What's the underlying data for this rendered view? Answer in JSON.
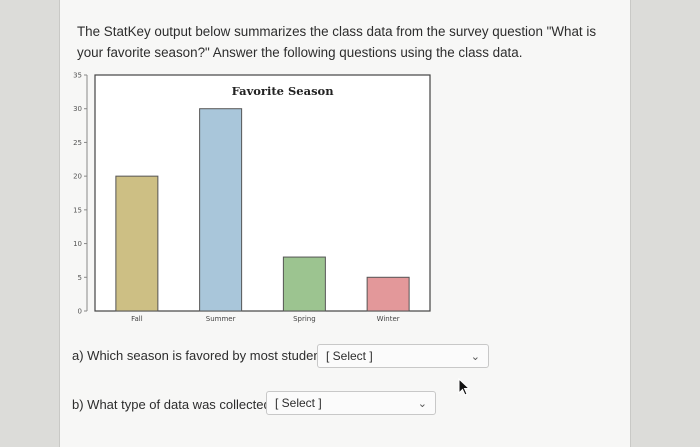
{
  "intro_text": "The StatKey output below summarizes the class data from the survey question \"What is your favorite season?\" Answer the following questions using the class data.",
  "chart_data": {
    "type": "bar",
    "title": "Favorite Season",
    "categories": [
      "Fall",
      "Summer",
      "Spring",
      "Winter"
    ],
    "values": [
      20,
      30,
      8,
      5
    ],
    "ylim": [
      0,
      35
    ],
    "yticks": [
      0,
      5,
      10,
      15,
      20,
      25,
      30,
      35
    ],
    "colors": [
      "#cdbf84",
      "#a9c6da",
      "#9cc490",
      "#e3989a"
    ],
    "grid": false
  },
  "questions": [
    {
      "label": "a) Which season is favored by most students?",
      "select_value": "[ Select ]"
    },
    {
      "label": "b) What type of data was collected?",
      "select_value": "[ Select ]"
    }
  ],
  "icons": {
    "dropdown": "chevron-down-icon",
    "cursor": "mouse-pointer-icon"
  }
}
